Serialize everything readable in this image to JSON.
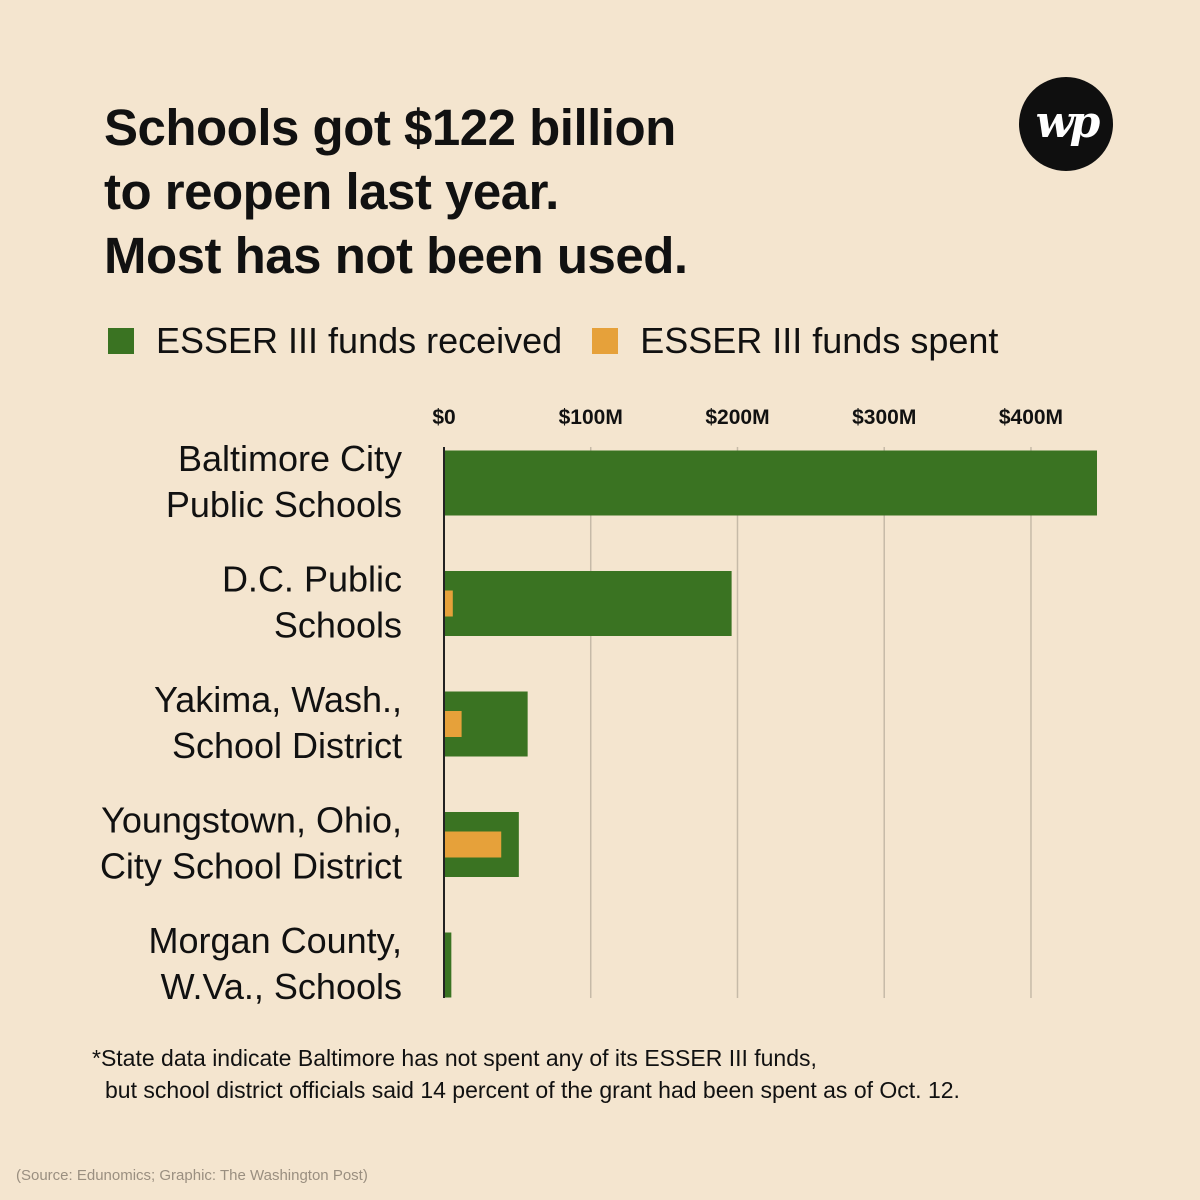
{
  "title": {
    "lines": [
      "Schools got $122 billion",
      "to reopen last year.",
      "Most has not been used."
    ]
  },
  "logo": {
    "icon": "washington-post-logo-icon",
    "text": "wp",
    "bg_color": "#0f0f0f",
    "fg_color": "#ffffff"
  },
  "colors": {
    "background": "#f4e5cf",
    "received": "#3a7322",
    "spent": "#e6a13a",
    "grid": "#c6baa8",
    "axis": "#222222"
  },
  "legend": {
    "items": [
      {
        "label": "ESSER III funds received",
        "color": "#3a7322"
      },
      {
        "label": "ESSER III funds spent",
        "color": "#e6a13a"
      }
    ]
  },
  "chart_data": {
    "type": "bar",
    "orientation": "horizontal",
    "units": "millions of dollars",
    "xlim": [
      0,
      445
    ],
    "ticks": [
      0,
      100,
      200,
      300,
      400
    ],
    "tick_labels": [
      "$0",
      "$100M",
      "$200M",
      "$300M",
      "$400M"
    ],
    "grid": true,
    "legend_position": "top",
    "categories": [
      [
        "Baltimore City",
        "Public Schools"
      ],
      [
        "D.C. Public",
        "Schools"
      ],
      [
        "Yakima, Wash.,",
        "School District"
      ],
      [
        "Youngstown, Ohio,",
        "City School District"
      ],
      [
        "Morgan County,",
        "W.Va., Schools"
      ]
    ],
    "series": [
      {
        "name": "ESSER III funds received",
        "color": "#3a7322",
        "values": [
          445,
          196,
          57,
          51,
          5
        ]
      },
      {
        "name": "ESSER III funds spent",
        "color": "#e6a13a",
        "values": [
          0,
          6,
          12,
          39,
          0
        ]
      }
    ]
  },
  "footnote": {
    "lines": [
      "*State data indicate Baltimore has not spent any of its ESSER III funds,",
      "but school district officials said 14 percent of the grant had been spent as of Oct. 12."
    ]
  },
  "source": "(Source: Edunomics; Graphic: The Washington Post)"
}
